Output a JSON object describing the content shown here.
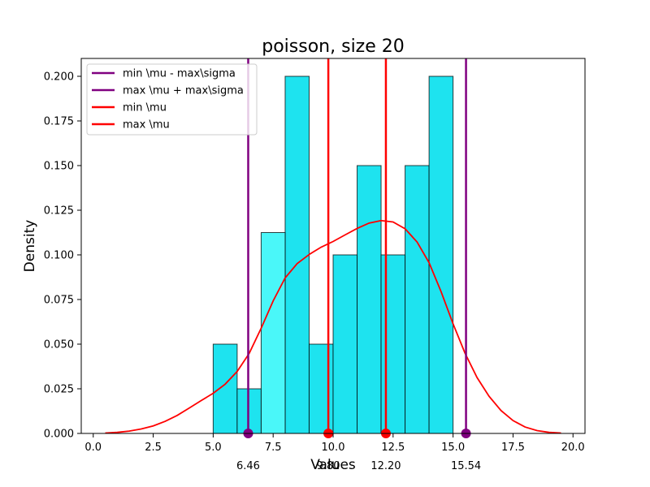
{
  "chart_data": {
    "type": "bar",
    "title": "poisson, size 20",
    "xlabel": "Values",
    "ylabel": "Density",
    "xlim": [
      -0.5,
      20.5
    ],
    "ylim": [
      0,
      0.21
    ],
    "xticks": [
      0.0,
      2.5,
      5.0,
      7.5,
      10.0,
      12.5,
      15.0,
      17.5,
      20.0
    ],
    "xtick_labels": [
      "0.0",
      "2.5",
      "5.0",
      "7.5",
      "10.0",
      "12.5",
      "15.0",
      "17.5",
      "20.0"
    ],
    "yticks": [
      0.0,
      0.025,
      0.05,
      0.075,
      0.1,
      0.125,
      0.15,
      0.175,
      0.2
    ],
    "ytick_labels": [
      "0.000",
      "0.025",
      "0.050",
      "0.075",
      "0.100",
      "0.125",
      "0.150",
      "0.175",
      "0.200"
    ],
    "histogram": {
      "bins": [
        {
          "x0": 5,
          "x1": 6,
          "density": 0.05
        },
        {
          "x0": 6,
          "x1": 7,
          "density": 0.025
        },
        {
          "x0": 8,
          "x1": 9,
          "density": 0.2
        },
        {
          "x0": 9,
          "x1": 10,
          "density": 0.05
        },
        {
          "x0": 10,
          "x1": 11,
          "density": 0.1
        },
        {
          "x0": 11,
          "x1": 12,
          "density": 0.15
        },
        {
          "x0": 12,
          "x1": 13,
          "density": 0.1
        },
        {
          "x0": 13,
          "x1": 14,
          "density": 0.15
        },
        {
          "x0": 14,
          "x1": 15,
          "density": 0.2
        }
      ],
      "color": "#1ee3ef"
    },
    "overlay_bar": {
      "x0": 7,
      "x1": 8,
      "density": 0.1125,
      "color": "#4af7f9"
    },
    "kde": {
      "color": "#ff0000",
      "points": [
        [
          0.5,
          0.0002
        ],
        [
          1.0,
          0.0006
        ],
        [
          1.5,
          0.0013
        ],
        [
          2.0,
          0.0025
        ],
        [
          2.5,
          0.0042
        ],
        [
          3.0,
          0.0068
        ],
        [
          3.5,
          0.0101
        ],
        [
          4.0,
          0.0142
        ],
        [
          4.5,
          0.0184
        ],
        [
          5.0,
          0.0225
        ],
        [
          5.5,
          0.0276
        ],
        [
          6.0,
          0.0347
        ],
        [
          6.5,
          0.0448
        ],
        [
          7.0,
          0.0589
        ],
        [
          7.5,
          0.0742
        ],
        [
          8.0,
          0.0871
        ],
        [
          8.5,
          0.0951
        ],
        [
          9.0,
          0.1002
        ],
        [
          9.5,
          0.1043
        ],
        [
          10.0,
          0.1075
        ],
        [
          10.5,
          0.1112
        ],
        [
          11.0,
          0.1148
        ],
        [
          11.5,
          0.1178
        ],
        [
          12.0,
          0.1192
        ],
        [
          12.5,
          0.1184
        ],
        [
          13.0,
          0.1146
        ],
        [
          13.5,
          0.1072
        ],
        [
          14.0,
          0.0956
        ],
        [
          14.5,
          0.0794
        ],
        [
          15.0,
          0.0614
        ],
        [
          15.5,
          0.0449
        ],
        [
          16.0,
          0.0313
        ],
        [
          16.5,
          0.0208
        ],
        [
          17.0,
          0.0128
        ],
        [
          17.5,
          0.0072
        ],
        [
          18.0,
          0.0036
        ],
        [
          18.5,
          0.0016
        ],
        [
          19.0,
          0.0006
        ],
        [
          19.5,
          0.0002
        ]
      ]
    },
    "vlines": [
      {
        "label": "min \\mu - max\\sigma",
        "x": 6.46,
        "color": "#800080",
        "marker_label": "6.46"
      },
      {
        "label": "max \\mu + max\\sigma",
        "x": 15.54,
        "color": "#800080",
        "marker_label": "15.54"
      },
      {
        "label": "min \\mu",
        "x": 9.8,
        "color": "#ff0000",
        "marker_label": "9.80"
      },
      {
        "label": "max \\mu",
        "x": 12.2,
        "color": "#ff0000",
        "marker_label": "12.20"
      }
    ],
    "legend": {
      "placement": "top-left",
      "entries": [
        {
          "label": "min \\mu - max\\sigma",
          "color": "#800080"
        },
        {
          "label": "max \\mu + max\\sigma",
          "color": "#800080"
        },
        {
          "label": "min \\mu",
          "color": "#ff0000"
        },
        {
          "label": "max \\mu",
          "color": "#ff0000"
        }
      ]
    },
    "grid": false
  }
}
